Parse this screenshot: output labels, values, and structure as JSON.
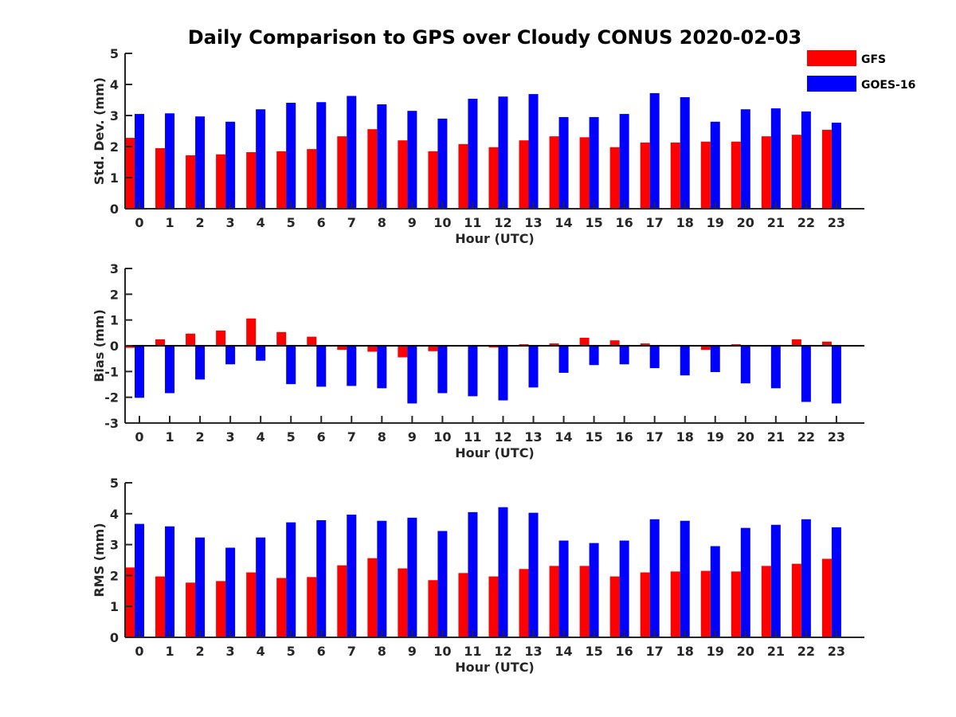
{
  "title": "Daily Comparison to GPS over Cloudy CONUS 2020-02-03",
  "legend": {
    "placement": "top-right",
    "items": [
      {
        "label": "GFS",
        "color": "#ff0000"
      },
      {
        "label": "GOES-16",
        "color": "#0000ff"
      }
    ]
  },
  "chart_data": [
    {
      "type": "bar",
      "xlabel": "Hour (UTC)",
      "ylabel": "Std. Dev. (mm)",
      "ylim": [
        0,
        5
      ],
      "yticks": [
        0,
        1,
        2,
        3,
        4,
        5
      ],
      "categories": [
        "0",
        "1",
        "2",
        "3",
        "4",
        "5",
        "6",
        "7",
        "8",
        "9",
        "10",
        "11",
        "12",
        "13",
        "14",
        "15",
        "16",
        "17",
        "18",
        "19",
        "20",
        "21",
        "22",
        "23"
      ],
      "series": [
        {
          "name": "GFS",
          "color": "#ff0000",
          "values": [
            2.28,
            1.95,
            1.72,
            1.75,
            1.82,
            1.85,
            1.92,
            2.33,
            2.56,
            2.2,
            1.85,
            2.08,
            1.98,
            2.2,
            2.33,
            2.3,
            1.98,
            2.13,
            2.13,
            2.16,
            2.16,
            2.33,
            2.38,
            2.54
          ]
        },
        {
          "name": "GOES-16",
          "color": "#0000ff",
          "values": [
            3.05,
            3.07,
            2.97,
            2.8,
            3.2,
            3.41,
            3.43,
            3.63,
            3.36,
            3.15,
            2.9,
            3.54,
            3.61,
            3.69,
            2.95,
            2.95,
            3.05,
            3.72,
            3.59,
            2.8,
            3.2,
            3.23,
            3.13,
            2.77
          ]
        }
      ]
    },
    {
      "type": "bar",
      "xlabel": "Hour (UTC)",
      "ylabel": "Bias (mm)",
      "ylim": [
        -3,
        3
      ],
      "yticks": [
        -3,
        -2,
        -1,
        0,
        1,
        2,
        3
      ],
      "categories": [
        "0",
        "1",
        "2",
        "3",
        "4",
        "5",
        "6",
        "7",
        "8",
        "9",
        "10",
        "11",
        "12",
        "13",
        "14",
        "15",
        "16",
        "17",
        "18",
        "19",
        "20",
        "21",
        "22",
        "23"
      ],
      "series": [
        {
          "name": "GFS",
          "color": "#ff0000",
          "values": [
            -0.08,
            0.25,
            0.47,
            0.59,
            1.06,
            0.53,
            0.35,
            -0.16,
            -0.23,
            -0.45,
            -0.21,
            -0.03,
            -0.07,
            0.06,
            0.09,
            0.31,
            0.21,
            0.09,
            -0.01,
            -0.16,
            0.06,
            0.03,
            0.25,
            0.16
          ]
        },
        {
          "name": "GOES-16",
          "color": "#0000ff",
          "values": [
            -2.02,
            -1.84,
            -1.31,
            -0.72,
            -0.58,
            -1.49,
            -1.59,
            -1.56,
            -1.65,
            -2.24,
            -1.84,
            -1.96,
            -2.12,
            -1.62,
            -1.05,
            -0.75,
            -0.72,
            -0.87,
            -1.15,
            -1.02,
            -1.46,
            -1.65,
            -2.18,
            -2.24
          ]
        }
      ]
    },
    {
      "type": "bar",
      "xlabel": "Hour (UTC)",
      "ylabel": "RMS (mm)",
      "ylim": [
        0,
        5
      ],
      "yticks": [
        0,
        1,
        2,
        3,
        4,
        5
      ],
      "categories": [
        "0",
        "1",
        "2",
        "3",
        "4",
        "5",
        "6",
        "7",
        "8",
        "9",
        "10",
        "11",
        "12",
        "13",
        "14",
        "15",
        "16",
        "17",
        "18",
        "19",
        "20",
        "21",
        "22",
        "23"
      ],
      "series": [
        {
          "name": "GFS",
          "color": "#ff0000",
          "values": [
            2.26,
            1.97,
            1.77,
            1.82,
            2.1,
            1.92,
            1.95,
            2.33,
            2.56,
            2.23,
            1.85,
            2.08,
            1.97,
            2.21,
            2.31,
            2.31,
            1.97,
            2.1,
            2.13,
            2.15,
            2.13,
            2.31,
            2.38,
            2.54
          ]
        },
        {
          "name": "GOES-16",
          "color": "#0000ff",
          "values": [
            3.67,
            3.59,
            3.23,
            2.9,
            3.23,
            3.72,
            3.79,
            3.97,
            3.77,
            3.87,
            3.44,
            4.05,
            4.21,
            4.03,
            3.13,
            3.05,
            3.13,
            3.82,
            3.77,
            2.95,
            3.54,
            3.64,
            3.82,
            3.56
          ]
        }
      ]
    }
  ]
}
